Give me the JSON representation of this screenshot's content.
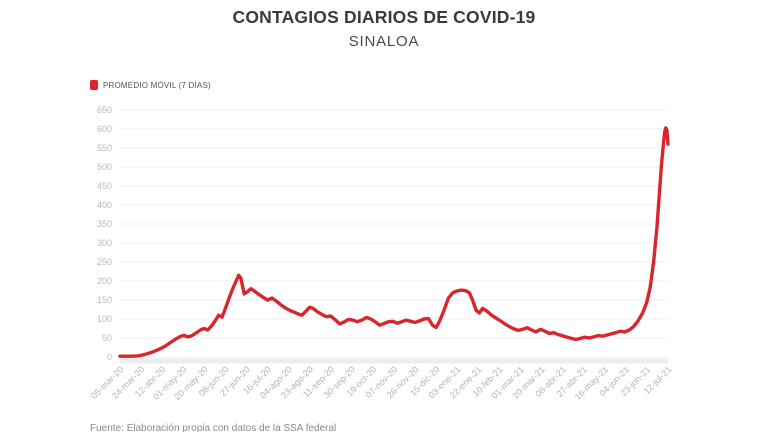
{
  "header": {
    "title": "CONTAGIOS DIARIOS DE COVID-19",
    "subtitle": "SINALOA"
  },
  "legend": {
    "label": "PROMEDIO MÓVIL (7 DÍAS)"
  },
  "footer": {
    "source": "Fuente: Elaboración propia con datos de la SSA federal"
  },
  "colors": {
    "line": "#d8262c",
    "legend_marker": "#dd2328",
    "grid": "#f0f0f0",
    "axis_band": "#ededed",
    "y_tick_text": "#b9b9b9",
    "x_tick_text": "#b3b3b3"
  },
  "chart_data": {
    "type": "line",
    "title": "CONTAGIOS DIARIOS DE COVID-19",
    "subtitle": "SINALOA",
    "series_name": "PROMEDIO MÓVIL (7 DÍAS)",
    "ylim": [
      0,
      650
    ],
    "y_tick_step": 50,
    "grid": true,
    "legend_position": "top-left",
    "x_tick_labels": [
      "05-mar-20",
      "24-mar-20",
      "12-abr-20",
      "01-may-20",
      "20-may-20",
      "08-jun-20",
      "27-jun-20",
      "16-jul-20",
      "04-ago-20",
      "23-ago-20",
      "11-sep-20",
      "30-sep-20",
      "19-oct-20",
      "07-nov-20",
      "26-nov-20",
      "15-dic-20",
      "03-ene-21",
      "22-ene-21",
      "10-feb-21",
      "01-mar-21",
      "20-mar-21",
      "08-abr-21",
      "27-abr-21",
      "16-may-21",
      "04-jun-21",
      "23-jun-21",
      "12-jul-21"
    ],
    "x_day_span": 494,
    "points": [
      [
        0,
        2
      ],
      [
        6,
        2
      ],
      [
        12,
        2
      ],
      [
        16,
        3
      ],
      [
        20,
        5
      ],
      [
        25,
        9
      ],
      [
        30,
        14
      ],
      [
        35,
        20
      ],
      [
        40,
        27
      ],
      [
        45,
        37
      ],
      [
        50,
        47
      ],
      [
        55,
        55
      ],
      [
        58,
        57
      ],
      [
        61,
        53
      ],
      [
        64,
        55
      ],
      [
        68,
        62
      ],
      [
        73,
        72
      ],
      [
        76,
        75
      ],
      [
        79,
        71
      ],
      [
        82,
        80
      ],
      [
        85,
        92
      ],
      [
        89,
        110
      ],
      [
        92,
        105
      ],
      [
        95,
        128
      ],
      [
        98,
        152
      ],
      [
        101,
        175
      ],
      [
        104,
        196
      ],
      [
        107,
        215
      ],
      [
        109,
        207
      ],
      [
        112,
        166
      ],
      [
        115,
        172
      ],
      [
        118,
        180
      ],
      [
        121,
        174
      ],
      [
        125,
        165
      ],
      [
        129,
        157
      ],
      [
        133,
        150
      ],
      [
        137,
        155
      ],
      [
        141,
        147
      ],
      [
        145,
        137
      ],
      [
        149,
        129
      ],
      [
        153,
        123
      ],
      [
        157,
        118
      ],
      [
        161,
        113
      ],
      [
        164,
        110
      ],
      [
        167,
        119
      ],
      [
        171,
        131
      ],
      [
        174,
        128
      ],
      [
        178,
        119
      ],
      [
        182,
        112
      ],
      [
        186,
        106
      ],
      [
        190,
        108
      ],
      [
        194,
        98
      ],
      [
        198,
        87
      ],
      [
        202,
        92
      ],
      [
        206,
        99
      ],
      [
        210,
        97
      ],
      [
        214,
        93
      ],
      [
        218,
        97
      ],
      [
        222,
        104
      ],
      [
        226,
        100
      ],
      [
        230,
        93
      ],
      [
        234,
        84
      ],
      [
        238,
        88
      ],
      [
        242,
        93
      ],
      [
        246,
        94
      ],
      [
        250,
        89
      ],
      [
        254,
        93
      ],
      [
        258,
        97
      ],
      [
        262,
        94
      ],
      [
        266,
        91
      ],
      [
        270,
        95
      ],
      [
        274,
        100
      ],
      [
        278,
        101
      ],
      [
        282,
        83
      ],
      [
        285,
        78
      ],
      [
        288,
        94
      ],
      [
        292,
        122
      ],
      [
        296,
        155
      ],
      [
        300,
        169
      ],
      [
        304,
        174
      ],
      [
        308,
        176
      ],
      [
        312,
        174
      ],
      [
        315,
        169
      ],
      [
        318,
        148
      ],
      [
        321,
        123
      ],
      [
        324,
        116
      ],
      [
        327,
        128
      ],
      [
        331,
        120
      ],
      [
        335,
        110
      ],
      [
        339,
        102
      ],
      [
        343,
        95
      ],
      [
        347,
        87
      ],
      [
        351,
        80
      ],
      [
        355,
        74
      ],
      [
        359,
        70
      ],
      [
        363,
        73
      ],
      [
        367,
        77
      ],
      [
        371,
        71
      ],
      [
        375,
        66
      ],
      [
        379,
        73
      ],
      [
        383,
        68
      ],
      [
        387,
        62
      ],
      [
        391,
        64
      ],
      [
        395,
        59
      ],
      [
        399,
        56
      ],
      [
        403,
        52
      ],
      [
        407,
        49
      ],
      [
        411,
        46
      ],
      [
        415,
        49
      ],
      [
        419,
        52
      ],
      [
        423,
        50
      ],
      [
        427,
        53
      ],
      [
        431,
        56
      ],
      [
        435,
        55
      ],
      [
        439,
        58
      ],
      [
        443,
        61
      ],
      [
        447,
        64
      ],
      [
        451,
        68
      ],
      [
        455,
        66
      ],
      [
        459,
        71
      ],
      [
        463,
        80
      ],
      [
        467,
        95
      ],
      [
        471,
        115
      ],
      [
        475,
        145
      ],
      [
        478,
        185
      ],
      [
        481,
        250
      ],
      [
        484,
        340
      ],
      [
        486,
        420
      ],
      [
        488,
        500
      ],
      [
        490,
        565
      ],
      [
        491,
        592
      ],
      [
        492,
        603
      ],
      [
        493,
        597
      ],
      [
        494,
        560
      ]
    ]
  }
}
